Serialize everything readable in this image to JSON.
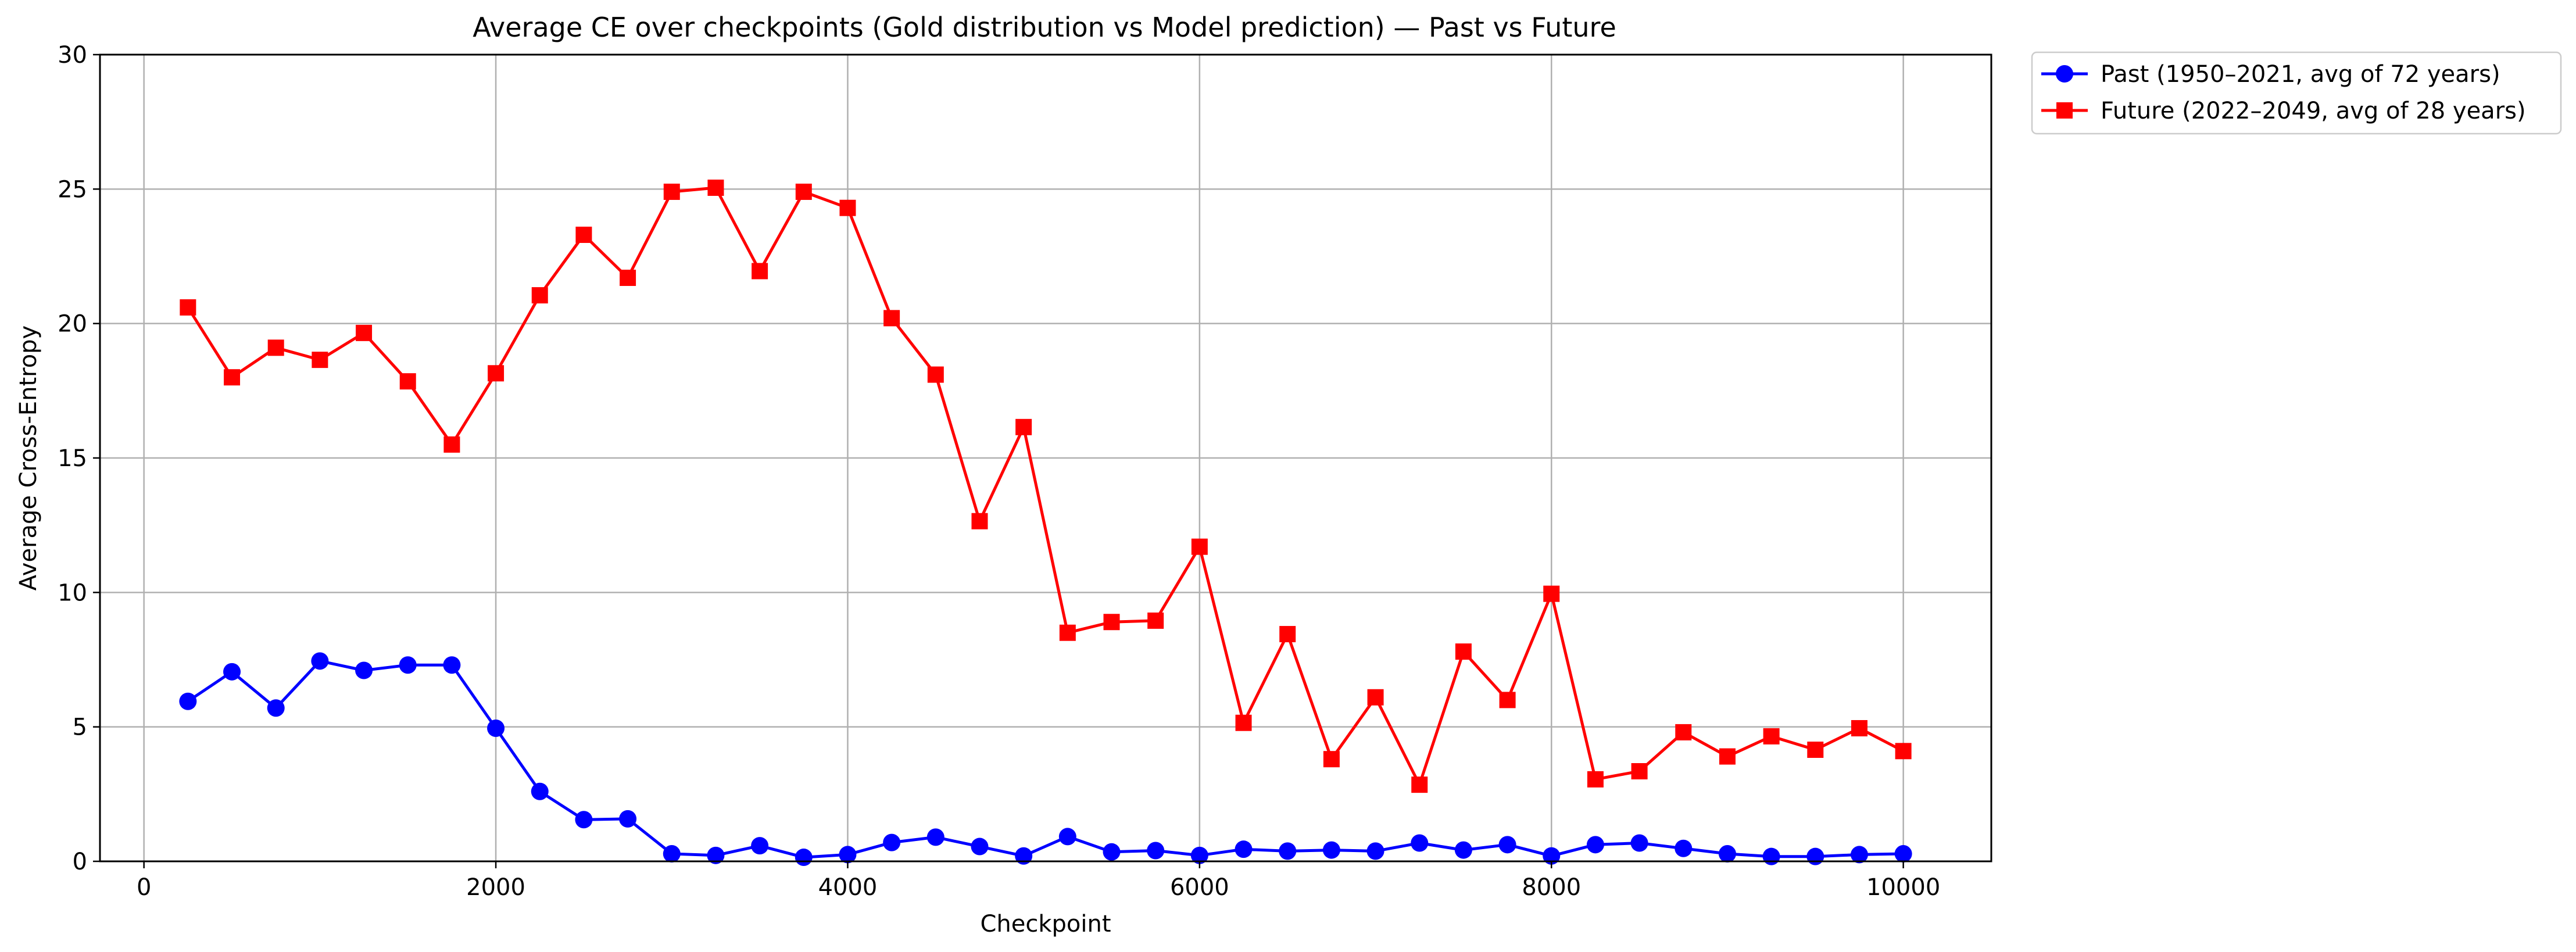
{
  "chart_data": {
    "type": "line",
    "title": "Average CE over checkpoints (Gold distribution vs Model prediction) — Past vs Future",
    "xlabel": "Checkpoint",
    "ylabel": "Average Cross-Entropy",
    "xlim": [
      -250,
      10500
    ],
    "ylim": [
      0,
      30
    ],
    "xticks": [
      0,
      2000,
      4000,
      6000,
      8000,
      10000
    ],
    "yticks": [
      0,
      5,
      10,
      15,
      20,
      25,
      30
    ],
    "grid": true,
    "legend_position": "outside-top-right",
    "x": [
      250,
      500,
      750,
      1000,
      1250,
      1500,
      1750,
      2000,
      2250,
      2500,
      2750,
      3000,
      3250,
      3500,
      3750,
      4000,
      4250,
      4500,
      4750,
      5000,
      5250,
      5500,
      5750,
      6000,
      6250,
      6500,
      6750,
      7000,
      7250,
      7500,
      7750,
      8000,
      8250,
      8500,
      8750,
      9000,
      9250,
      9500,
      9750,
      10000
    ],
    "series": [
      {
        "name": "Past (1950–2021, avg of 72 years)",
        "color": "#0000ff",
        "marker": "circle",
        "values": [
          5.95,
          7.05,
          5.7,
          7.45,
          7.1,
          7.3,
          7.3,
          4.95,
          2.6,
          1.55,
          1.58,
          0.28,
          0.22,
          0.58,
          0.15,
          0.25,
          0.7,
          0.9,
          0.55,
          0.2,
          0.92,
          0.35,
          0.4,
          0.22,
          0.45,
          0.38,
          0.42,
          0.38,
          0.68,
          0.42,
          0.62,
          0.2,
          0.62,
          0.68,
          0.48,
          0.28,
          0.18,
          0.18,
          0.25,
          0.28
        ]
      },
      {
        "name": "Future (2022–2049, avg of 28 years)",
        "color": "#ff0000",
        "marker": "square",
        "values": [
          20.6,
          18.0,
          19.1,
          18.65,
          19.65,
          17.85,
          15.5,
          18.15,
          21.05,
          23.3,
          21.7,
          24.9,
          25.05,
          21.95,
          24.9,
          24.3,
          20.2,
          18.1,
          12.65,
          16.15,
          8.5,
          8.9,
          8.95,
          11.7,
          5.15,
          8.45,
          3.8,
          6.1,
          2.85,
          7.8,
          6.0,
          9.95,
          3.05,
          3.35,
          4.8,
          3.9,
          4.65,
          4.15,
          4.95,
          4.1
        ]
      }
    ]
  }
}
